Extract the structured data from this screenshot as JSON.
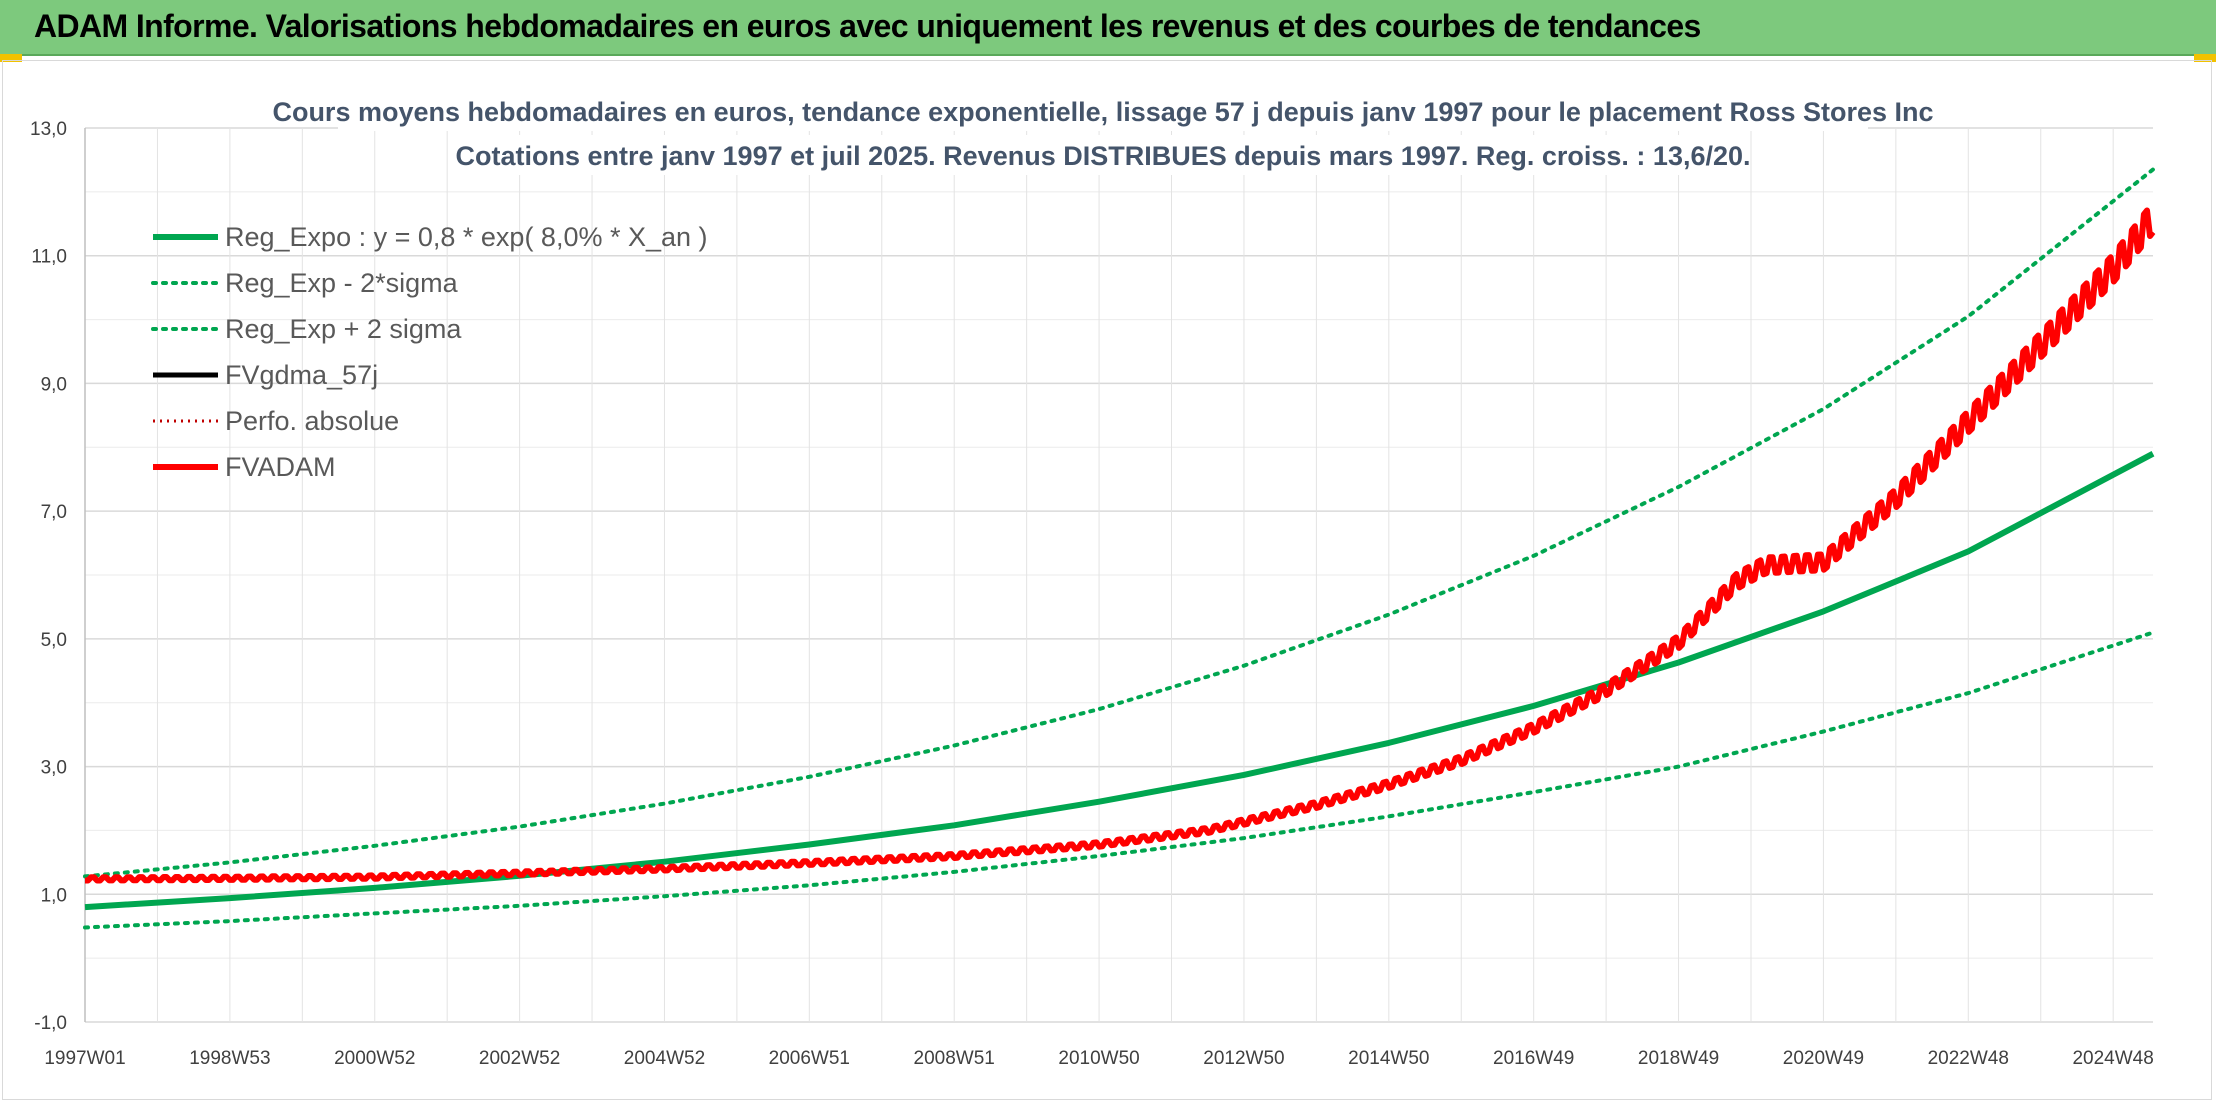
{
  "banner": {
    "title": "ADAM Informe. Valorisations hebdomadaires en euros avec uniquement les revenus et des courbes de tendances"
  },
  "colors": {
    "banner_bg": "#7dc97d",
    "regression": "#00a650",
    "fvgdma": "#000000",
    "fvadam": "#ff0000",
    "perfo": "#c00000",
    "grid": "#d9d9d9"
  },
  "chart_data": {
    "type": "line",
    "title": "Cours moyens hebdomadaires en euros, tendance exponentielle, lissage 57 j depuis janv 1997 pour le placement Ross Stores Inc",
    "subtitle": "Cotations entre janv 1997 et juil 2025. Revenus DISTRIBUES depuis mars 1997. Reg. croiss. : 13,6/20.",
    "xlabel": "",
    "ylabel": "",
    "ylim": [
      -1,
      13
    ],
    "x_range_years": [
      1997.0,
      2025.55
    ],
    "y_ticks": [
      "-1,0",
      "1,0",
      "3,0",
      "5,0",
      "7,0",
      "9,0",
      "11,0",
      "13,0"
    ],
    "x_ticks": [
      {
        "label": "1997W01",
        "year": 1997.0
      },
      {
        "label": "1998W53",
        "year": 1999.0
      },
      {
        "label": "2000W52",
        "year": 2001.0
      },
      {
        "label": "2002W52",
        "year": 2003.0
      },
      {
        "label": "2004W52",
        "year": 2005.0
      },
      {
        "label": "2006W51",
        "year": 2007.0
      },
      {
        "label": "2008W51",
        "year": 2009.0
      },
      {
        "label": "2010W50",
        "year": 2011.0
      },
      {
        "label": "2012W50",
        "year": 2013.0
      },
      {
        "label": "2014W50",
        "year": 2015.0
      },
      {
        "label": "2016W49",
        "year": 2017.0
      },
      {
        "label": "2018W49",
        "year": 2019.0
      },
      {
        "label": "2020W49",
        "year": 2021.0
      },
      {
        "label": "2022W48",
        "year": 2023.0
      },
      {
        "label": "2024W48",
        "year": 2025.0
      }
    ],
    "grid": true,
    "legend_position": "top-left",
    "legend": [
      {
        "label": "Reg_Expo : y = 0,8 * exp( 8,0% *  X_an )",
        "series": "reg_expo"
      },
      {
        "label": "Reg_Exp - 2*sigma",
        "series": "reg_minus"
      },
      {
        "label": "Reg_Exp + 2 sigma",
        "series": "reg_plus"
      },
      {
        "label": "FVgdma_57j",
        "series": "fvgdma"
      },
      {
        "label": "Perfo. absolue",
        "series": "perfo"
      },
      {
        "label": "FVADAM",
        "series": "fvadam"
      }
    ],
    "series": [
      {
        "name": "Reg_Expo : y = 0,8 * exp( 8,0% *  X_an )",
        "key": "reg_expo",
        "x": [
          1997,
          1999,
          2001,
          2003,
          2005,
          2007,
          2009,
          2011,
          2013,
          2015,
          2017,
          2019,
          2021,
          2023,
          2025.55
        ],
        "y": [
          0.8,
          0.94,
          1.1,
          1.29,
          1.51,
          1.78,
          2.08,
          2.45,
          2.87,
          3.37,
          3.95,
          4.63,
          5.43,
          6.37,
          7.9
        ]
      },
      {
        "name": "Reg_Exp - 2*sigma",
        "key": "reg_minus",
        "x": [
          1997,
          1999,
          2001,
          2003,
          2005,
          2007,
          2009,
          2011,
          2013,
          2015,
          2017,
          2019,
          2021,
          2023,
          2025.55
        ],
        "y": [
          0.48,
          0.58,
          0.7,
          0.82,
          0.97,
          1.14,
          1.35,
          1.6,
          1.88,
          2.22,
          2.6,
          3.0,
          3.55,
          4.15,
          5.1
        ]
      },
      {
        "name": "Reg_Exp + 2 sigma",
        "key": "reg_plus",
        "x": [
          1997,
          1999,
          2001,
          2003,
          2005,
          2007,
          2009,
          2011,
          2013,
          2015,
          2017,
          2019,
          2021,
          2023,
          2025.55
        ],
        "y": [
          1.28,
          1.5,
          1.76,
          2.06,
          2.42,
          2.84,
          3.33,
          3.9,
          4.58,
          5.38,
          6.3,
          7.38,
          8.6,
          10.05,
          12.35
        ]
      },
      {
        "name": "FVgdma_57j",
        "key": "fvgdma",
        "x": [
          1997,
          1999,
          2001,
          2003,
          2005,
          2007,
          2009,
          2011,
          2012.5,
          2014,
          2015,
          2016,
          2017,
          2018,
          2019,
          2019.8,
          2020.2,
          2021,
          2022,
          2023,
          2024,
          2025,
          2025.55
        ],
        "y": [
          1.24,
          1.25,
          1.27,
          1.33,
          1.4,
          1.49,
          1.6,
          1.78,
          2.0,
          2.4,
          2.72,
          3.1,
          3.6,
          4.2,
          4.95,
          5.9,
          6.15,
          6.2,
          7.2,
          8.4,
          9.6,
          10.8,
          11.6
        ]
      },
      {
        "name": "Perfo. absolue",
        "key": "perfo",
        "x": [
          1997,
          1999,
          2001,
          2003,
          2005,
          2007,
          2009,
          2011,
          2012.5,
          2014,
          2015,
          2016,
          2017,
          2018,
          2019,
          2019.8,
          2020.2,
          2021,
          2022,
          2023,
          2024,
          2025,
          2025.55
        ],
        "y": [
          1.24,
          1.25,
          1.27,
          1.33,
          1.4,
          1.49,
          1.6,
          1.78,
          2.0,
          2.4,
          2.72,
          3.1,
          3.6,
          4.2,
          4.95,
          5.9,
          6.15,
          6.2,
          7.2,
          8.4,
          9.6,
          10.8,
          11.6
        ]
      },
      {
        "name": "FVADAM",
        "key": "fvadam",
        "x": [
          1997,
          1999,
          2001,
          2003,
          2005,
          2007,
          2009,
          2011,
          2012.5,
          2014,
          2015,
          2016,
          2017,
          2018,
          2019,
          2019.8,
          2020.2,
          2021,
          2022,
          2023,
          2024,
          2025,
          2025.55
        ],
        "y": [
          1.24,
          1.25,
          1.27,
          1.33,
          1.4,
          1.49,
          1.6,
          1.78,
          2.0,
          2.4,
          2.72,
          3.1,
          3.6,
          4.2,
          4.95,
          5.9,
          6.15,
          6.2,
          7.2,
          8.4,
          9.6,
          10.8,
          11.6
        ]
      }
    ]
  }
}
